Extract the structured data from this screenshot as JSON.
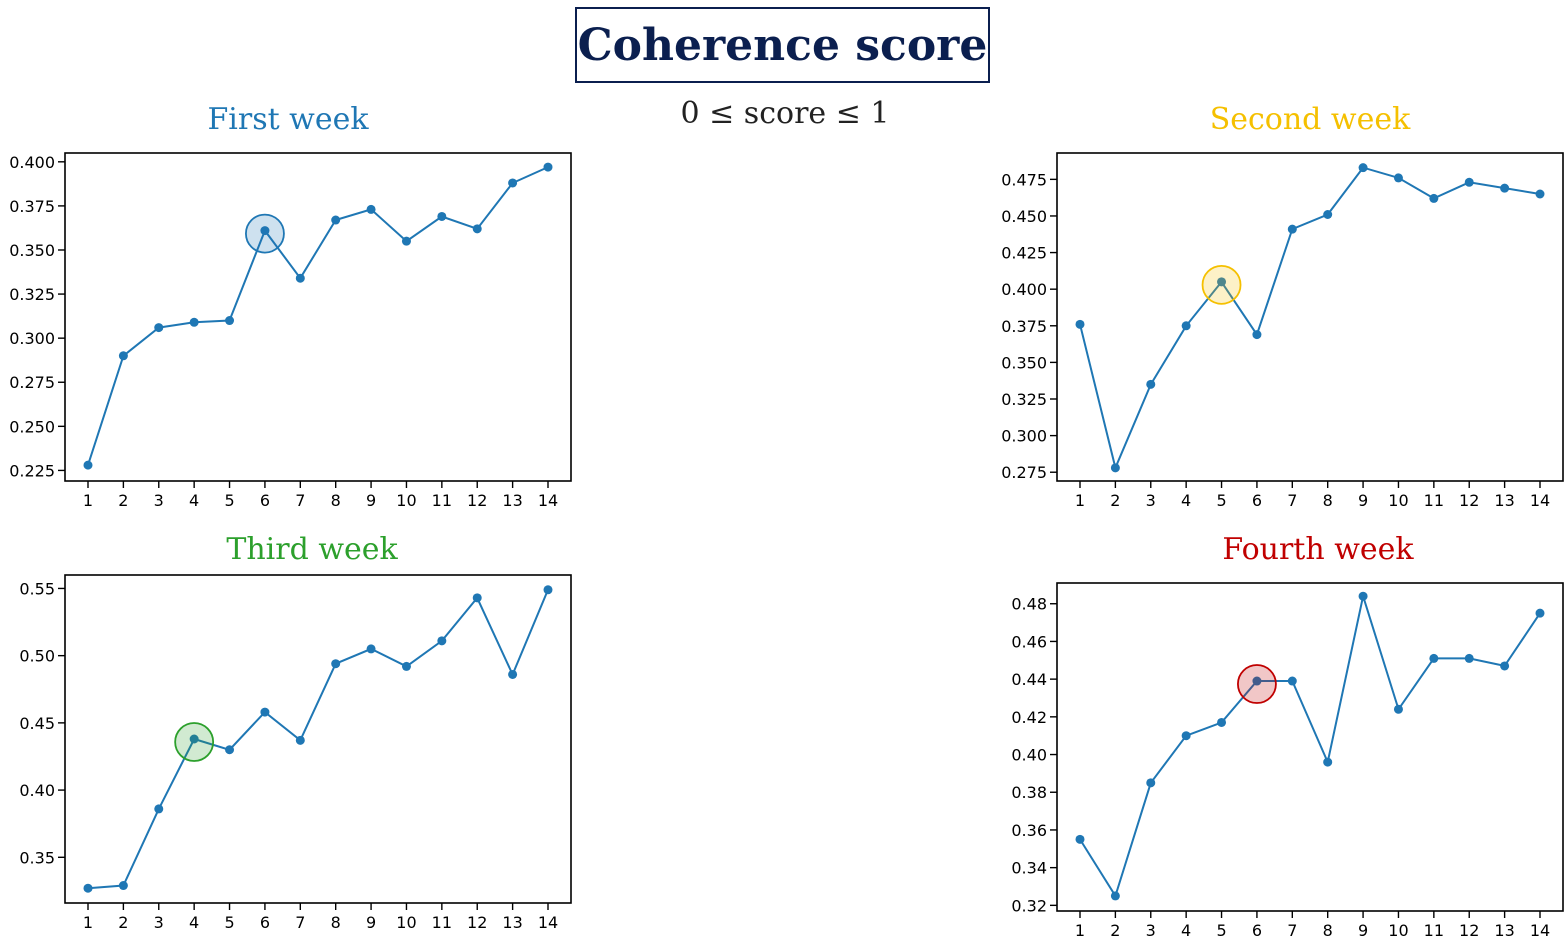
{
  "header": {
    "title": "Coherence score",
    "subtitle": "0 ≤ score ≤ 1"
  },
  "chart_data": [
    {
      "type": "line",
      "title": "First week",
      "title_color": "#1f77b4",
      "highlight_color": "#1f77b4",
      "highlight_index": 5,
      "x": [
        1,
        2,
        3,
        4,
        5,
        6,
        7,
        8,
        9,
        10,
        11,
        12,
        13,
        14
      ],
      "values": [
        0.228,
        0.29,
        0.306,
        0.309,
        0.31,
        0.361,
        0.334,
        0.367,
        0.373,
        0.355,
        0.369,
        0.362,
        0.388,
        0.397
      ],
      "ylim": [
        0.219,
        0.405
      ],
      "yticks": [
        0.225,
        0.25,
        0.275,
        0.3,
        0.325,
        0.35,
        0.375,
        0.4
      ],
      "ytick_labels": [
        "0.225",
        "0.250",
        "0.275",
        "0.300",
        "0.325",
        "0.350",
        "0.375",
        "0.400"
      ],
      "xlabel": "",
      "ylabel": ""
    },
    {
      "type": "line",
      "title": "Second week",
      "title_color": "#f5c000",
      "highlight_color": "#f5c000",
      "highlight_index": 4,
      "x": [
        1,
        2,
        3,
        4,
        5,
        6,
        7,
        8,
        9,
        10,
        11,
        12,
        13,
        14
      ],
      "values": [
        0.376,
        0.278,
        0.335,
        0.375,
        0.405,
        0.369,
        0.441,
        0.451,
        0.483,
        0.476,
        0.462,
        0.473,
        0.469,
        0.465
      ],
      "ylim": [
        0.269,
        0.493
      ],
      "yticks": [
        0.275,
        0.3,
        0.325,
        0.35,
        0.375,
        0.4,
        0.425,
        0.45,
        0.475
      ],
      "ytick_labels": [
        "0.275",
        "0.300",
        "0.325",
        "0.350",
        "0.375",
        "0.400",
        "0.425",
        "0.450",
        "0.475"
      ],
      "xlabel": "",
      "ylabel": ""
    },
    {
      "type": "line",
      "title": "Third week",
      "title_color": "#2ca02c",
      "highlight_color": "#2ca02c",
      "highlight_index": 3,
      "x": [
        1,
        2,
        3,
        4,
        5,
        6,
        7,
        8,
        9,
        10,
        11,
        12,
        13,
        14
      ],
      "values": [
        0.327,
        0.329,
        0.386,
        0.438,
        0.43,
        0.458,
        0.437,
        0.494,
        0.505,
        0.492,
        0.511,
        0.543,
        0.486,
        0.549
      ],
      "ylim": [
        0.316,
        0.56
      ],
      "yticks": [
        0.35,
        0.4,
        0.45,
        0.5,
        0.55
      ],
      "ytick_labels": [
        "0.35",
        "0.40",
        "0.45",
        "0.50",
        "0.55"
      ],
      "xlabel": "",
      "ylabel": ""
    },
    {
      "type": "line",
      "title": "Fourth week",
      "title_color": "#c00000",
      "highlight_color": "#c00000",
      "highlight_index": 5,
      "x": [
        1,
        2,
        3,
        4,
        5,
        6,
        7,
        8,
        9,
        10,
        11,
        12,
        13,
        14
      ],
      "values": [
        0.355,
        0.325,
        0.385,
        0.41,
        0.417,
        0.439,
        0.439,
        0.396,
        0.484,
        0.424,
        0.451,
        0.451,
        0.447,
        0.475
      ],
      "ylim": [
        0.317,
        0.491
      ],
      "yticks": [
        0.32,
        0.34,
        0.36,
        0.38,
        0.4,
        0.42,
        0.44,
        0.46,
        0.48
      ],
      "ytick_labels": [
        "0.32",
        "0.34",
        "0.36",
        "0.38",
        "0.40",
        "0.42",
        "0.44",
        "0.46",
        "0.48"
      ],
      "xlabel": "",
      "ylabel": ""
    }
  ],
  "colors": {
    "line": "#1f77b4",
    "axis": "#000000",
    "text": "#000000"
  }
}
